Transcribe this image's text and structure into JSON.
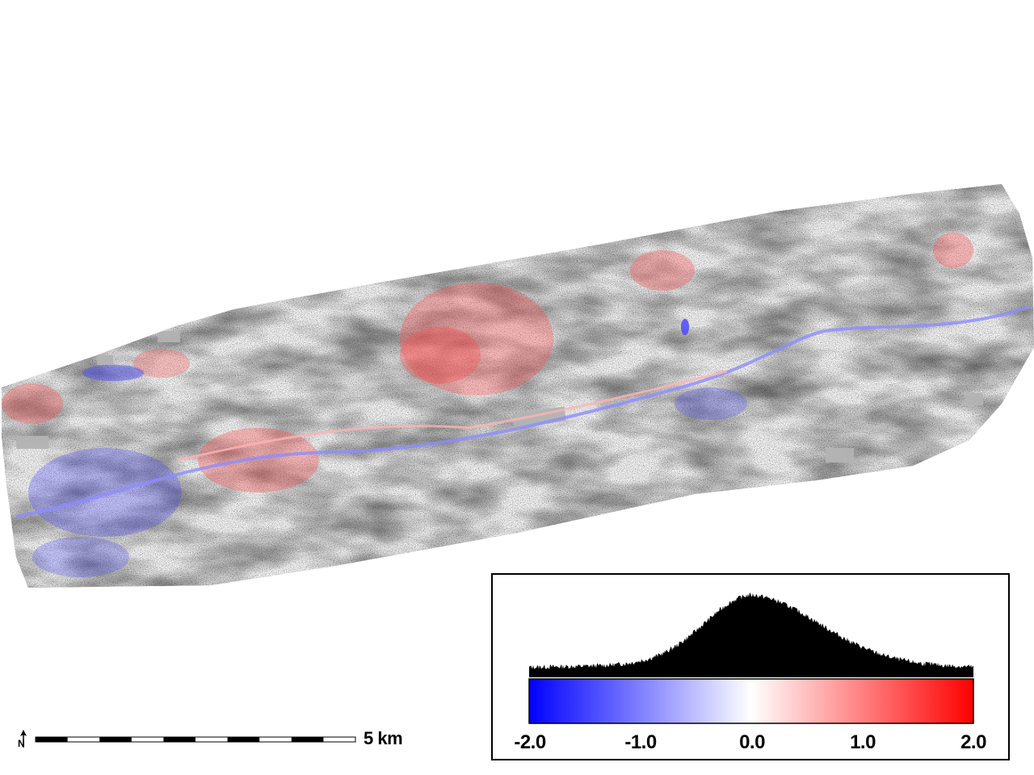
{
  "map": {
    "type": "raster difference map",
    "colormap": [
      "#0000ff",
      "#ffffff",
      "#ff0000"
    ],
    "background_texture": "grayscale-noise",
    "nodata_color": "#b3b3b3"
  },
  "scale_bar": {
    "label": "5 km",
    "segments": 10,
    "north_arrow_icon": "north-arrow-icon"
  },
  "legend": {
    "range": [
      -2.0,
      2.0
    ],
    "tick_labels": [
      "-2.0",
      "-1.0",
      "0.0",
      "1.0",
      "2.0"
    ],
    "histogram": {
      "shape": "unimodal",
      "peak_at": 0.0
    }
  }
}
